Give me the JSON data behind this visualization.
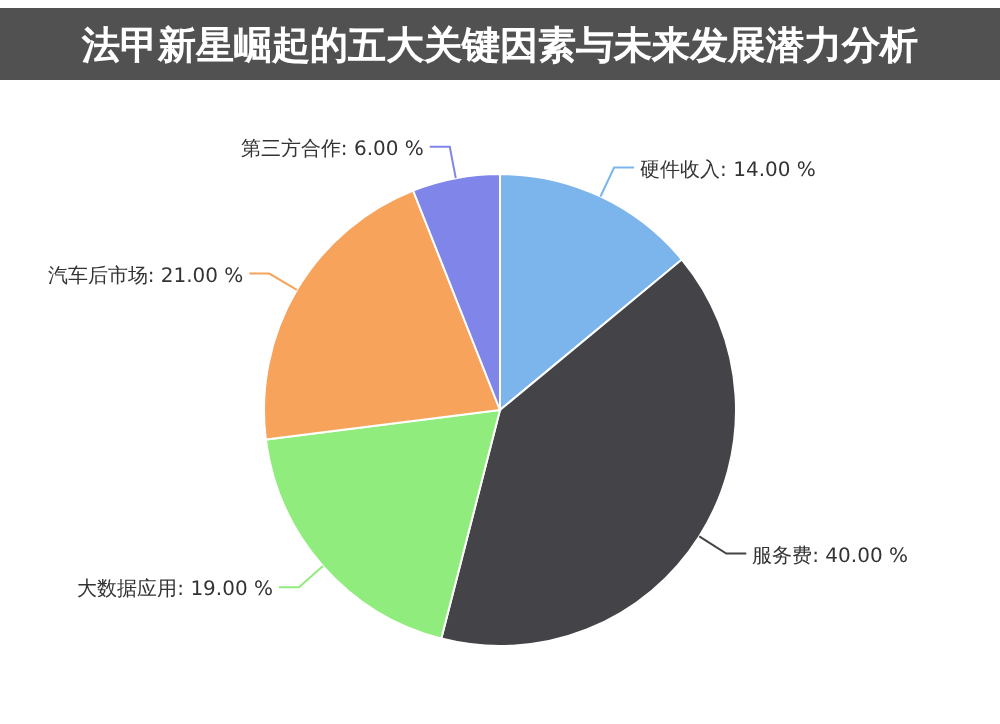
{
  "chart_data": {
    "type": "pie",
    "title": "法甲新星崛起的五大关键因素与未来发展潜力分析",
    "categories": [
      "硬件收入",
      "服务费",
      "大数据应用",
      "汽车后市场",
      "第三方合作"
    ],
    "values": [
      14,
      40,
      19,
      21,
      6
    ],
    "colors": [
      "#7cb5ec",
      "#434348",
      "#90ed7d",
      "#f7a35c",
      "#8085e9"
    ],
    "value_labels": [
      "14.00 %",
      "40.00 %",
      "19.00 %",
      "21.00 %",
      "6.00 %"
    ]
  }
}
